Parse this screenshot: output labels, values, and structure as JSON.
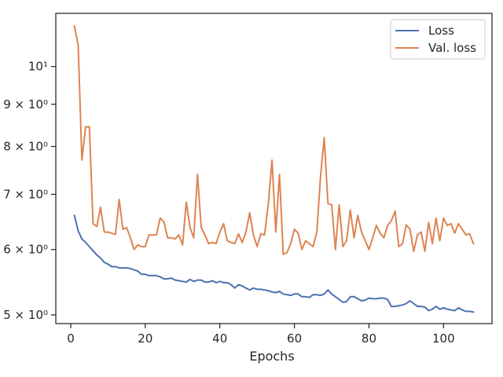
{
  "chart_data": {
    "type": "line",
    "xlabel": "Epochs",
    "ylabel": "",
    "title": "",
    "xlim": [
      -4,
      113
    ],
    "ylim": [
      4.88,
      11.6
    ],
    "yscale": "log",
    "grid": false,
    "legend": {
      "position": "top-right"
    },
    "xticks": [
      {
        "value": 0,
        "label": "0"
      },
      {
        "value": 20,
        "label": "20"
      },
      {
        "value": 40,
        "label": "40"
      },
      {
        "value": 60,
        "label": "60"
      },
      {
        "value": 80,
        "label": "80"
      },
      {
        "value": 100,
        "label": "100"
      }
    ],
    "yticks": [
      {
        "value": 5,
        "label": "5 × 10⁰"
      },
      {
        "value": 6,
        "label": "6 × 10⁰"
      },
      {
        "value": 7,
        "label": "7 × 10⁰"
      },
      {
        "value": 8,
        "label": "8 × 10⁰"
      },
      {
        "value": 9,
        "label": "9 × 10⁰"
      },
      {
        "value": 10,
        "label": "10¹"
      }
    ],
    "x": [
      1,
      2,
      3,
      4,
      5,
      6,
      7,
      8,
      9,
      10,
      11,
      12,
      13,
      14,
      15,
      16,
      17,
      18,
      19,
      20,
      21,
      22,
      23,
      24,
      25,
      26,
      27,
      28,
      29,
      30,
      31,
      32,
      33,
      34,
      35,
      36,
      37,
      38,
      39,
      40,
      41,
      42,
      43,
      44,
      45,
      46,
      47,
      48,
      49,
      50,
      51,
      52,
      53,
      54,
      55,
      56,
      57,
      58,
      59,
      60,
      61,
      62,
      63,
      64,
      65,
      66,
      67,
      68,
      69,
      70,
      71,
      72,
      73,
      74,
      75,
      76,
      77,
      78,
      79,
      80,
      81,
      82,
      83,
      84,
      85,
      86,
      87,
      88,
      89,
      90,
      91,
      92,
      93,
      94,
      95,
      96,
      97,
      98,
      99,
      100,
      101,
      102,
      103,
      104,
      105,
      106,
      107,
      108
    ],
    "series": [
      {
        "name": "Loss",
        "color": "#4c72b0",
        "values": [
          6.6,
          6.32,
          6.18,
          6.12,
          6.05,
          5.98,
          5.91,
          5.86,
          5.79,
          5.76,
          5.72,
          5.72,
          5.7,
          5.7,
          5.7,
          5.69,
          5.67,
          5.65,
          5.6,
          5.6,
          5.58,
          5.58,
          5.58,
          5.56,
          5.53,
          5.53,
          5.54,
          5.51,
          5.5,
          5.49,
          5.48,
          5.52,
          5.49,
          5.51,
          5.51,
          5.48,
          5.48,
          5.5,
          5.47,
          5.49,
          5.47,
          5.47,
          5.44,
          5.39,
          5.44,
          5.42,
          5.39,
          5.36,
          5.39,
          5.37,
          5.37,
          5.36,
          5.35,
          5.33,
          5.32,
          5.34,
          5.3,
          5.29,
          5.28,
          5.3,
          5.3,
          5.26,
          5.26,
          5.25,
          5.29,
          5.29,
          5.28,
          5.3,
          5.36,
          5.3,
          5.26,
          5.22,
          5.18,
          5.19,
          5.26,
          5.26,
          5.23,
          5.2,
          5.21,
          5.24,
          5.23,
          5.23,
          5.24,
          5.24,
          5.22,
          5.12,
          5.12,
          5.13,
          5.14,
          5.16,
          5.2,
          5.16,
          5.12,
          5.12,
          5.11,
          5.06,
          5.08,
          5.12,
          5.08,
          5.1,
          5.08,
          5.07,
          5.06,
          5.1,
          5.07,
          5.05,
          5.05,
          5.04
        ]
      },
      {
        "name": "Val. loss",
        "color": "#dd8452",
        "values": [
          11.2,
          10.6,
          7.7,
          8.45,
          8.45,
          6.45,
          6.4,
          6.75,
          6.3,
          6.3,
          6.28,
          6.26,
          6.9,
          6.35,
          6.38,
          6.2,
          6.0,
          6.08,
          6.05,
          6.05,
          6.25,
          6.25,
          6.25,
          6.55,
          6.48,
          6.2,
          6.2,
          6.18,
          6.25,
          6.08,
          6.85,
          6.38,
          6.2,
          7.4,
          6.38,
          6.25,
          6.1,
          6.12,
          6.1,
          6.3,
          6.45,
          6.15,
          6.12,
          6.1,
          6.27,
          6.12,
          6.3,
          6.65,
          6.25,
          6.05,
          6.27,
          6.25,
          6.82,
          7.7,
          6.3,
          7.4,
          5.92,
          5.95,
          6.1,
          6.35,
          6.28,
          6.0,
          6.15,
          6.1,
          6.05,
          6.3,
          7.35,
          8.2,
          6.82,
          6.8,
          6.0,
          6.8,
          6.05,
          6.15,
          6.7,
          6.2,
          6.6,
          6.3,
          6.15,
          6.0,
          6.2,
          6.42,
          6.28,
          6.2,
          6.42,
          6.5,
          6.68,
          6.05,
          6.1,
          6.43,
          6.35,
          5.97,
          6.25,
          6.3,
          5.97,
          6.47,
          6.1,
          6.55,
          6.15,
          6.55,
          6.42,
          6.45,
          6.28,
          6.45,
          6.35,
          6.25,
          6.27,
          6.1
        ]
      }
    ]
  }
}
